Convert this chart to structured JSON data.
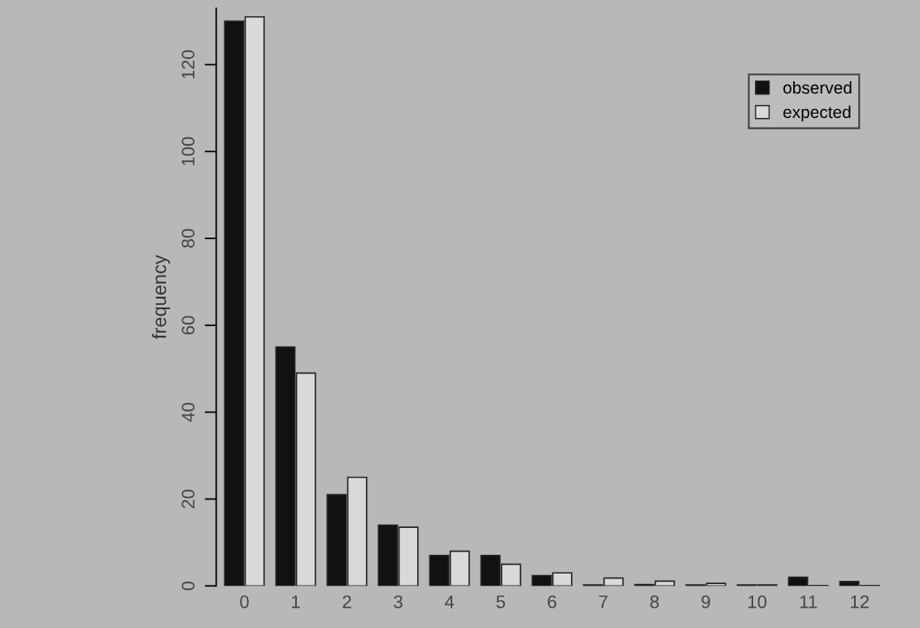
{
  "chart_data": {
    "type": "bar",
    "ylabel": "frequency",
    "categories": [
      "0",
      "1",
      "2",
      "3",
      "4",
      "5",
      "6",
      "7",
      "8",
      "9",
      "10",
      "11",
      "12"
    ],
    "series": [
      {
        "name": "observed",
        "color": "#111111",
        "values": [
          130,
          55,
          21,
          14,
          7,
          7,
          2.4,
          0.2,
          0.3,
          0.2,
          0.2,
          2,
          1
        ]
      },
      {
        "name": "expected",
        "color": "#d9d9d9",
        "values": [
          131,
          49,
          25,
          13.5,
          8,
          5,
          3,
          1.8,
          1.1,
          0.6,
          0.2,
          0.1,
          0.1
        ]
      }
    ],
    "ylim": [
      0,
      133
    ],
    "yticks": [
      0,
      20,
      40,
      60,
      80,
      100,
      120
    ],
    "grid": false,
    "legend": "top right"
  }
}
